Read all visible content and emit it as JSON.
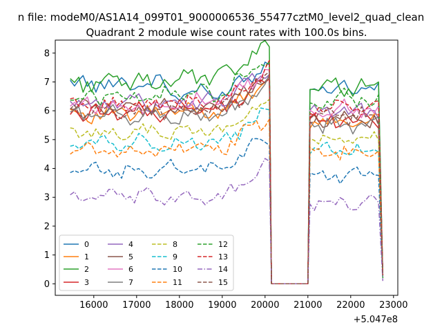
{
  "chart_data": {
    "type": "line",
    "suptitle": "n file: modeM0/AS1A14_099T01_9000006536_55477cztM0_level2_quad_clean",
    "title": "Quadrant 2 module wise count rates with 100.0s bins.",
    "xlabel": "",
    "ylabel": "",
    "x_offset_label": "+5.047e8",
    "xlim": [
      15100,
      23100
    ],
    "ylim": [
      -0.4,
      8.45
    ],
    "xticks": [
      16000,
      17000,
      18000,
      19000,
      20000,
      21000,
      22000,
      23000
    ],
    "xtick_labels": [
      "16000",
      "17000",
      "18000",
      "19000",
      "20000",
      "21000",
      "22000",
      "23000"
    ],
    "yticks": [
      0,
      1,
      2,
      3,
      4,
      5,
      6,
      7,
      8
    ],
    "ytick_labels": [
      "0",
      "1",
      "2",
      "3",
      "4",
      "5",
      "6",
      "7",
      "8"
    ],
    "legend": {
      "location": "lower-left",
      "columns": 4
    },
    "grid": false,
    "segments": [
      {
        "x_start": 15450,
        "x_end": 17700,
        "step": 100
      },
      {
        "x_start": 17800,
        "x_end": 20100,
        "step": 100
      },
      {
        "x_start": 20150,
        "x_end": 21000,
        "step": 850
      },
      {
        "x_start": 21050,
        "x_end": 22700,
        "step": 100
      }
    ],
    "series": [
      {
        "name": "0",
        "color": "#1f77b4",
        "dash": "solid",
        "seg_levels": [
          6.95,
          6.6,
          0,
          6.8
        ],
        "noise": 0.22,
        "end_value": 0.2
      },
      {
        "name": "1",
        "color": "#ff7f0e",
        "dash": "solid",
        "seg_levels": [
          5.9,
          6.0,
          0,
          5.6
        ],
        "noise": 0.22,
        "end_value": 0.3
      },
      {
        "name": "2",
        "color": "#2ca02c",
        "dash": "solid",
        "seg_levels": [
          7.0,
          7.15,
          0,
          6.85
        ],
        "noise": 0.25,
        "end_value": 0.2
      },
      {
        "name": "3",
        "color": "#d62728",
        "dash": "solid",
        "seg_levels": [
          5.95,
          6.05,
          0,
          5.7
        ],
        "noise": 0.22,
        "end_value": 0.3
      },
      {
        "name": "4",
        "color": "#9467bd",
        "dash": "solid",
        "seg_levels": [
          6.3,
          6.35,
          0,
          6.0
        ],
        "noise": 0.22,
        "end_value": 0.3
      },
      {
        "name": "5",
        "color": "#8c564b",
        "dash": "solid",
        "seg_levels": [
          6.1,
          6.1,
          0,
          5.7
        ],
        "noise": 0.22,
        "end_value": 0.3
      },
      {
        "name": "6",
        "color": "#e377c2",
        "dash": "solid",
        "seg_levels": [
          6.2,
          6.3,
          0,
          6.05
        ],
        "noise": 0.22,
        "end_value": 0.3
      },
      {
        "name": "7",
        "color": "#7f7f7f",
        "dash": "solid",
        "seg_levels": [
          5.85,
          5.8,
          0,
          5.5
        ],
        "noise": 0.22,
        "end_value": 0.3
      },
      {
        "name": "8",
        "color": "#bcbd22",
        "dash": "dashed",
        "seg_levels": [
          5.25,
          5.3,
          0,
          5.0
        ],
        "noise": 0.2,
        "end_value": 0.3
      },
      {
        "name": "9",
        "color": "#17becf",
        "dash": "dashed",
        "seg_levels": [
          4.9,
          4.9,
          0,
          4.6
        ],
        "noise": 0.2,
        "end_value": 0.2
      },
      {
        "name": "10",
        "color": "#1f77b4",
        "dash": "dashed",
        "seg_levels": [
          3.9,
          4.0,
          0,
          3.8
        ],
        "noise": 0.2,
        "end_value": 0.2
      },
      {
        "name": "11",
        "color": "#ff7f0e",
        "dash": "dashed",
        "seg_levels": [
          4.6,
          4.7,
          0,
          4.5
        ],
        "noise": 0.2,
        "end_value": 0.3
      },
      {
        "name": "12",
        "color": "#2ca02c",
        "dash": "dashed",
        "seg_levels": [
          6.5,
          6.6,
          0,
          6.4
        ],
        "noise": 0.25,
        "end_value": 0.2
      },
      {
        "name": "13",
        "color": "#d62728",
        "dash": "dashed",
        "seg_levels": [
          6.2,
          6.3,
          0,
          6.1
        ],
        "noise": 0.22,
        "end_value": 0.3
      },
      {
        "name": "14",
        "color": "#9467bd",
        "dash": "dashdot",
        "seg_levels": [
          3.0,
          3.0,
          0,
          2.8
        ],
        "noise": 0.2,
        "end_value": 0.1
      },
      {
        "name": "15",
        "color": "#8c564b",
        "dash": "dashed",
        "seg_levels": [
          6.0,
          6.05,
          0,
          5.8
        ],
        "noise": 0.22,
        "end_value": 0.3
      }
    ]
  }
}
